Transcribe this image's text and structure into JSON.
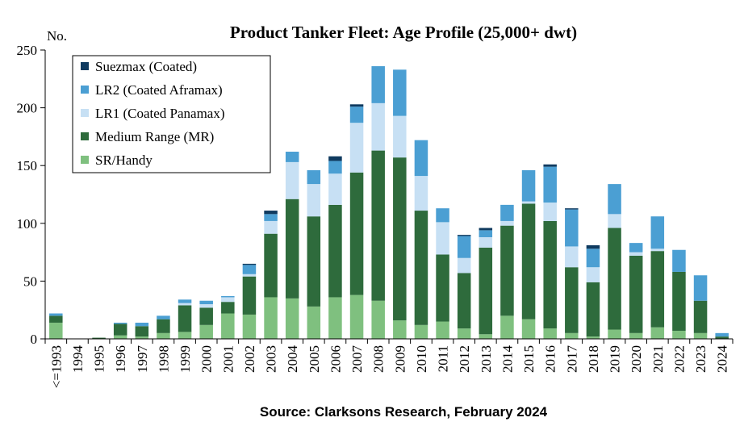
{
  "chart_data": {
    "type": "bar",
    "stacked": true,
    "title": "Product Tanker Fleet: Age Profile (25,000+ dwt)",
    "ylabel": "No.",
    "xlabel": "",
    "ylim": [
      0,
      250
    ],
    "yticks": [
      0,
      50,
      100,
      150,
      200,
      250
    ],
    "grid": false,
    "legend_position": "top-left",
    "source": "Source: Clarksons Research, February 2024",
    "categories": [
      "<=1993",
      "1994",
      "1995",
      "1996",
      "1997",
      "1998",
      "1999",
      "2000",
      "2001",
      "2002",
      "2003",
      "2004",
      "2005",
      "2006",
      "2007",
      "2008",
      "2009",
      "2010",
      "2011",
      "2012",
      "2013",
      "2014",
      "2015",
      "2016",
      "2017",
      "2018",
      "2019",
      "2020",
      "2021",
      "2022",
      "2023",
      "2024"
    ],
    "series": [
      {
        "name": "SR/Handy",
        "color": "#7fc07f",
        "values": [
          14,
          0,
          0,
          3,
          2,
          5,
          6,
          12,
          22,
          21,
          36,
          35,
          28,
          36,
          38,
          33,
          16,
          12,
          15,
          9,
          4,
          20,
          17,
          9,
          5,
          2,
          8,
          5,
          10,
          7,
          5,
          0
        ]
      },
      {
        "name": "Medium Range (MR)",
        "color": "#2e6b3c",
        "values": [
          6,
          0,
          1,
          10,
          9,
          12,
          23,
          15,
          10,
          33,
          55,
          86,
          78,
          80,
          106,
          130,
          141,
          99,
          58,
          48,
          75,
          78,
          100,
          93,
          57,
          47,
          88,
          67,
          66,
          51,
          28,
          2
        ]
      },
      {
        "name": "LR1 (Coated Panamax)",
        "color": "#c7e0f4",
        "values": [
          0,
          0,
          0,
          0,
          0,
          0,
          2,
          3,
          4,
          2,
          11,
          32,
          28,
          27,
          43,
          41,
          36,
          30,
          28,
          13,
          9,
          4,
          2,
          16,
          18,
          13,
          12,
          3,
          2,
          0,
          0,
          0
        ]
      },
      {
        "name": "LR2 (Coated Aframax)",
        "color": "#4b9fd3",
        "values": [
          2,
          0,
          0,
          1,
          3,
          3,
          3,
          3,
          1,
          8,
          6,
          9,
          12,
          11,
          14,
          32,
          40,
          31,
          12,
          19,
          6,
          14,
          27,
          31,
          32,
          16,
          26,
          8,
          28,
          19,
          22,
          3
        ]
      },
      {
        "name": "Suezmax (Coated)",
        "color": "#0f3a5f",
        "values": [
          0,
          0,
          0,
          0,
          0,
          0,
          0,
          0,
          0,
          1,
          3,
          0,
          0,
          4,
          2,
          0,
          0,
          0,
          0,
          1,
          2,
          0,
          0,
          2,
          1,
          3,
          0,
          0,
          0,
          0,
          0,
          0
        ]
      }
    ],
    "legend_order": [
      "Suezmax (Coated)",
      "LR2 (Coated Aframax)",
      "LR1 (Coated Panamax)",
      "Medium Range (MR)",
      "SR/Handy"
    ]
  }
}
